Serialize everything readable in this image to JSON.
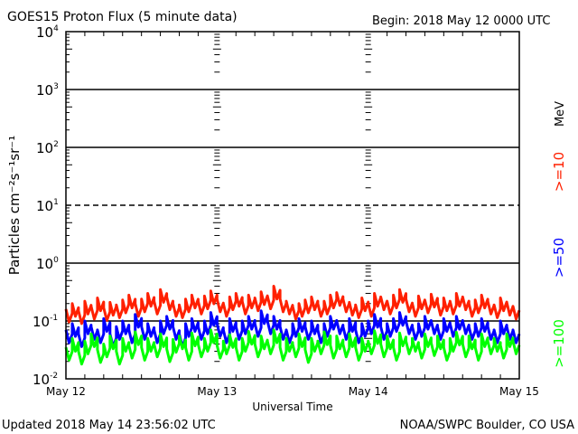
{
  "chart_data": {
    "type": "line",
    "title": "GOES15 Proton Flux (5 minute data)",
    "begin_label": "Begin: 2018 May 12 0000 UTC",
    "xlabel": "Universal Time",
    "ylabel": "Particles cm⁻²s⁻¹sr⁻¹",
    "y_scale": "log",
    "ylim": [
      0.01,
      10000
    ],
    "y_ticks": [
      {
        "base": "10",
        "exp": "4"
      },
      {
        "base": "10",
        "exp": "3"
      },
      {
        "base": "10",
        "exp": "2"
      },
      {
        "base": "10",
        "exp": "1"
      },
      {
        "base": "10",
        "exp": "0"
      },
      {
        "base": "10",
        "exp": "-1"
      },
      {
        "base": "10",
        "exp": "-2"
      }
    ],
    "x_range_hours": [
      0,
      72
    ],
    "x_ticks": [
      "May 12",
      "May 13",
      "May 14",
      "May 15"
    ],
    "unit_label": "MeV",
    "grid": "horizontal lines at each decade, 10^1 dashed",
    "series": [
      {
        "name": ">=10",
        "color": "#ff2000",
        "values": [
          0.16,
          0.2,
          0.15,
          0.22,
          0.18,
          0.25,
          0.17,
          0.21,
          0.19,
          0.23,
          0.28,
          0.2,
          0.24,
          0.3,
          0.22,
          0.35,
          0.26,
          0.2,
          0.19,
          0.24,
          0.28,
          0.22,
          0.27,
          0.33,
          0.24,
          0.2,
          0.26,
          0.3,
          0.22,
          0.28,
          0.25,
          0.32,
          0.27,
          0.4,
          0.24,
          0.22,
          0.18,
          0.2,
          0.23,
          0.26,
          0.2,
          0.22,
          0.28,
          0.31,
          0.24,
          0.21,
          0.19,
          0.25,
          0.2,
          0.3,
          0.26,
          0.22,
          0.28,
          0.35,
          0.24,
          0.2,
          0.27,
          0.23,
          0.29,
          0.21,
          0.25,
          0.22,
          0.3,
          0.26,
          0.2,
          0.23,
          0.28,
          0.22,
          0.19,
          0.25,
          0.21,
          0.18
        ]
      },
      {
        "name": ">=50",
        "color": "#0000ff",
        "values": [
          0.07,
          0.09,
          0.06,
          0.1,
          0.08,
          0.07,
          0.11,
          0.06,
          0.08,
          0.1,
          0.07,
          0.13,
          0.08,
          0.09,
          0.07,
          0.1,
          0.12,
          0.08,
          0.06,
          0.09,
          0.11,
          0.08,
          0.1,
          0.14,
          0.09,
          0.07,
          0.11,
          0.08,
          0.1,
          0.12,
          0.09,
          0.15,
          0.1,
          0.12,
          0.08,
          0.07,
          0.09,
          0.11,
          0.08,
          0.1,
          0.07,
          0.09,
          0.12,
          0.1,
          0.08,
          0.11,
          0.07,
          0.09,
          0.1,
          0.13,
          0.08,
          0.09,
          0.11,
          0.14,
          0.1,
          0.08,
          0.09,
          0.12,
          0.1,
          0.08,
          0.11,
          0.09,
          0.12,
          0.1,
          0.08,
          0.09,
          0.11,
          0.08,
          0.07,
          0.1,
          0.08,
          0.07
        ]
      },
      {
        "name": ">=100",
        "color": "#00ff00",
        "values": [
          0.035,
          0.05,
          0.03,
          0.045,
          0.06,
          0.032,
          0.04,
          0.055,
          0.03,
          0.05,
          0.038,
          0.065,
          0.035,
          0.05,
          0.04,
          0.06,
          0.033,
          0.048,
          0.055,
          0.035,
          0.062,
          0.04,
          0.05,
          0.07,
          0.038,
          0.045,
          0.058,
          0.035,
          0.05,
          0.066,
          0.04,
          0.055,
          0.045,
          0.07,
          0.035,
          0.05,
          0.04,
          0.06,
          0.032,
          0.05,
          0.045,
          0.065,
          0.038,
          0.055,
          0.04,
          0.06,
          0.035,
          0.05,
          0.045,
          0.068,
          0.04,
          0.055,
          0.035,
          0.062,
          0.045,
          0.05,
          0.038,
          0.06,
          0.042,
          0.055,
          0.035,
          0.05,
          0.064,
          0.04,
          0.055,
          0.035,
          0.06,
          0.045,
          0.05,
          0.038,
          0.06,
          0.045
        ]
      }
    ]
  },
  "footer": {
    "updated": "Updated 2018 May 14 23:56:02 UTC",
    "credit": "NOAA/SWPC Boulder, CO USA"
  }
}
